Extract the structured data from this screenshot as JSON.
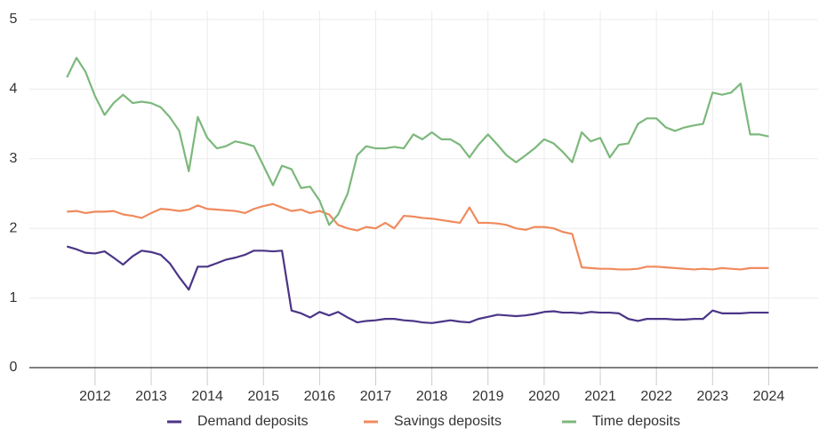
{
  "chart_data": {
    "type": "line",
    "x": [
      2011.5,
      2011.67,
      2011.83,
      2012,
      2012.17,
      2012.33,
      2012.5,
      2012.67,
      2012.83,
      2013,
      2013.17,
      2013.33,
      2013.5,
      2013.67,
      2013.83,
      2014,
      2014.17,
      2014.33,
      2014.5,
      2014.67,
      2014.83,
      2015,
      2015.17,
      2015.33,
      2015.5,
      2015.67,
      2015.83,
      2016,
      2016.17,
      2016.33,
      2016.5,
      2016.67,
      2016.83,
      2017,
      2017.17,
      2017.33,
      2017.5,
      2017.67,
      2017.83,
      2018,
      2018.17,
      2018.33,
      2018.5,
      2018.67,
      2018.83,
      2019,
      2019.17,
      2019.33,
      2019.5,
      2019.67,
      2019.83,
      2020,
      2020.17,
      2020.33,
      2020.5,
      2020.67,
      2020.83,
      2021,
      2021.17,
      2021.33,
      2021.5,
      2021.67,
      2021.83,
      2022,
      2022.17,
      2022.33,
      2022.5,
      2022.67,
      2022.83,
      2023,
      2023.17,
      2023.33,
      2023.5,
      2023.67,
      2023.83,
      2024
    ],
    "series": [
      {
        "name": "Demand deposits",
        "color": "#4b3587",
        "values": [
          1.74,
          1.7,
          1.65,
          1.64,
          1.67,
          1.58,
          1.48,
          1.6,
          1.68,
          1.66,
          1.62,
          1.5,
          1.3,
          1.12,
          1.45,
          1.45,
          1.5,
          1.55,
          1.58,
          1.62,
          1.68,
          1.68,
          1.67,
          1.68,
          0.82,
          0.78,
          0.72,
          0.8,
          0.75,
          0.8,
          0.72,
          0.65,
          0.67,
          0.68,
          0.7,
          0.7,
          0.68,
          0.67,
          0.65,
          0.64,
          0.66,
          0.68,
          0.66,
          0.65,
          0.7,
          0.73,
          0.76,
          0.75,
          0.74,
          0.75,
          0.77,
          0.8,
          0.81,
          0.79,
          0.79,
          0.78,
          0.8,
          0.79,
          0.79,
          0.78,
          0.7,
          0.67,
          0.7,
          0.7,
          0.7,
          0.69,
          0.69,
          0.7,
          0.7,
          0.82,
          0.78,
          0.78,
          0.78,
          0.79,
          0.79,
          0.79
        ]
      },
      {
        "name": "Savings deposits",
        "color": "#f08a5d",
        "values": [
          2.24,
          2.25,
          2.22,
          2.24,
          2.24,
          2.25,
          2.2,
          2.18,
          2.15,
          2.22,
          2.28,
          2.27,
          2.25,
          2.27,
          2.33,
          2.28,
          2.27,
          2.26,
          2.25,
          2.22,
          2.28,
          2.32,
          2.35,
          2.3,
          2.25,
          2.27,
          2.22,
          2.25,
          2.2,
          2.05,
          2.0,
          1.97,
          2.02,
          2.0,
          2.08,
          2.0,
          2.18,
          2.17,
          2.15,
          2.14,
          2.12,
          2.1,
          2.08,
          2.3,
          2.08,
          2.08,
          2.07,
          2.05,
          2.0,
          1.98,
          2.02,
          2.02,
          2.0,
          1.95,
          1.92,
          1.44,
          1.43,
          1.42,
          1.42,
          1.41,
          1.41,
          1.42,
          1.45,
          1.45,
          1.44,
          1.43,
          1.42,
          1.41,
          1.42,
          1.41,
          1.43,
          1.42,
          1.41,
          1.43,
          1.43,
          1.43
        ]
      },
      {
        "name": "Time deposits",
        "color": "#7cb87c",
        "values": [
          4.17,
          4.45,
          4.25,
          3.9,
          3.63,
          3.8,
          3.92,
          3.8,
          3.82,
          3.8,
          3.74,
          3.6,
          3.4,
          2.82,
          3.6,
          3.3,
          3.15,
          3.18,
          3.25,
          3.22,
          3.18,
          2.9,
          2.62,
          2.9,
          2.85,
          2.58,
          2.6,
          2.4,
          2.05,
          2.2,
          2.5,
          3.05,
          3.18,
          3.15,
          3.15,
          3.17,
          3.15,
          3.35,
          3.28,
          3.38,
          3.28,
          3.28,
          3.2,
          3.02,
          3.2,
          3.35,
          3.2,
          3.05,
          2.95,
          3.05,
          3.15,
          3.28,
          3.22,
          3.1,
          2.95,
          3.38,
          3.25,
          3.3,
          3.02,
          3.2,
          3.22,
          3.5,
          3.58,
          3.58,
          3.45,
          3.4,
          3.45,
          3.48,
          3.5,
          3.95,
          3.92,
          3.95,
          4.08,
          3.35,
          3.35,
          3.32
        ]
      }
    ],
    "xlim": [
      2010.83,
      2024.88
    ],
    "xticks": [
      2012,
      2013,
      2014,
      2015,
      2016,
      2017,
      2018,
      2019,
      2020,
      2021,
      2022,
      2023,
      2024
    ],
    "ylim": [
      0,
      5
    ],
    "yticks": [
      0,
      1,
      2,
      3,
      4,
      5
    ],
    "grid": true,
    "legend": "bottom"
  }
}
